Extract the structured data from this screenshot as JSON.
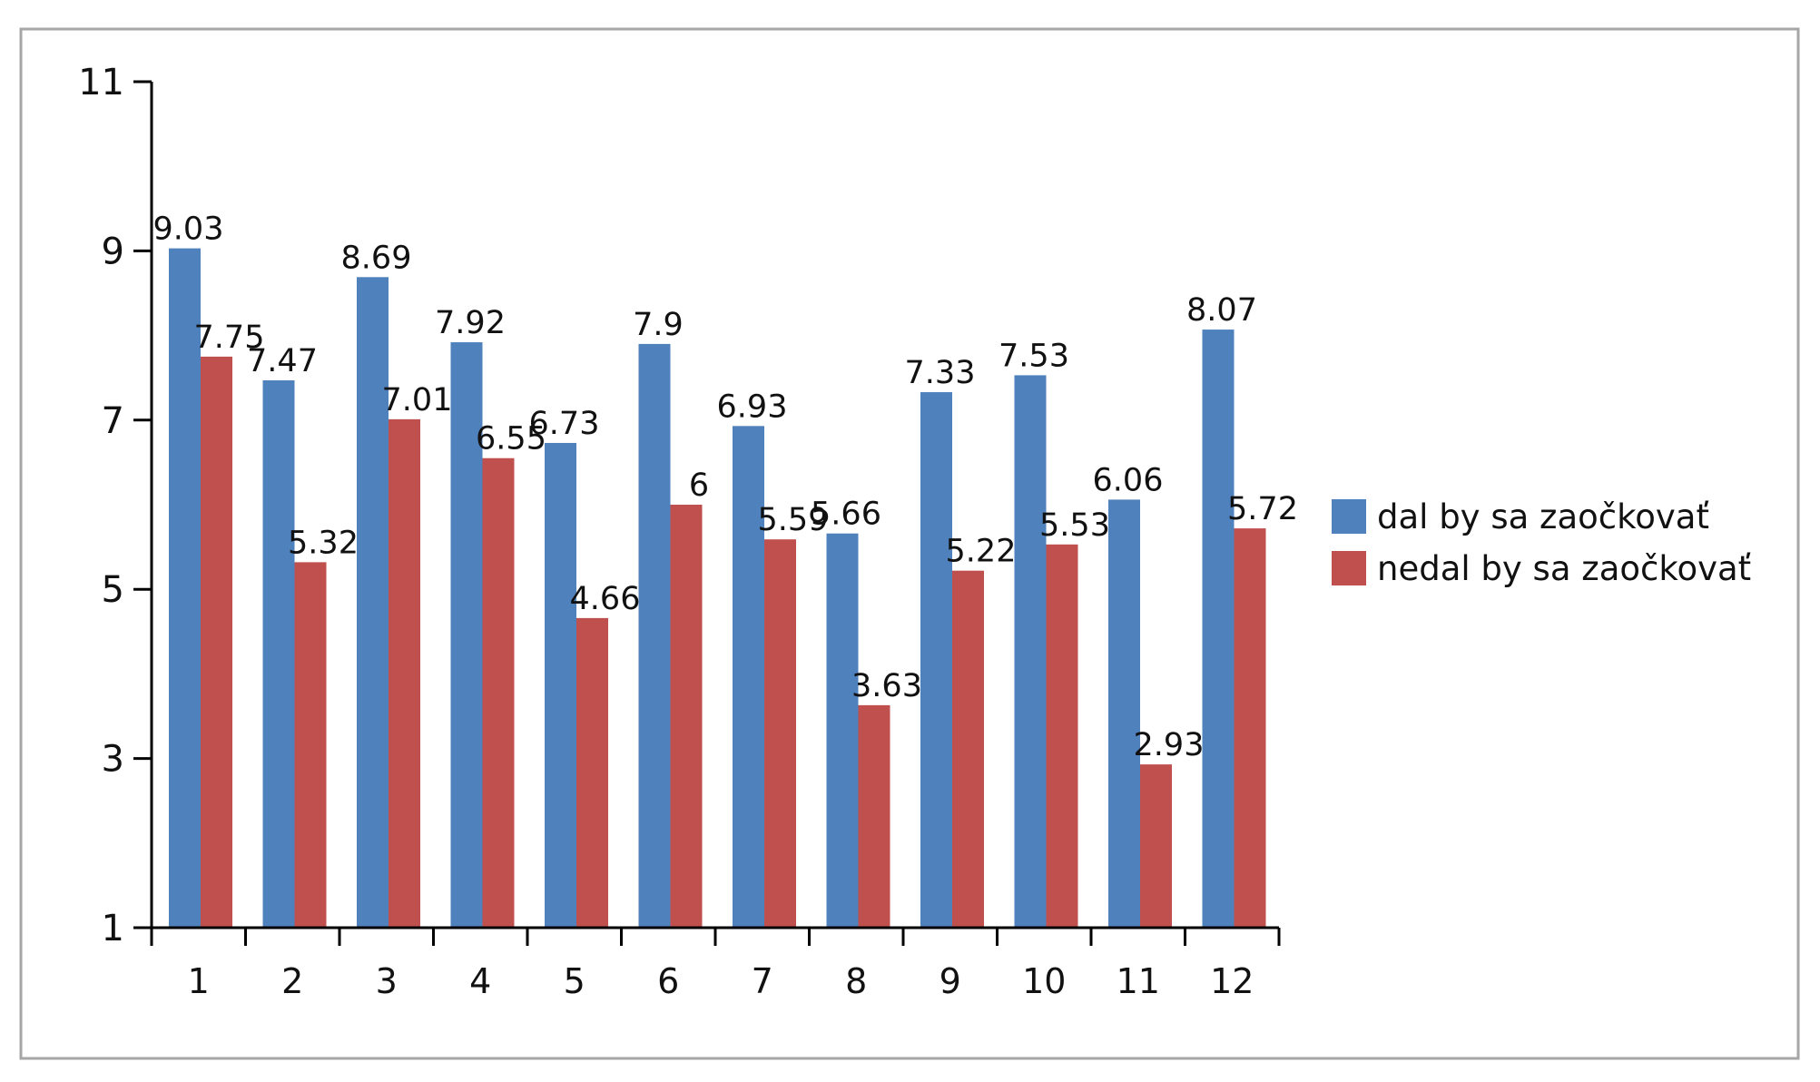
{
  "chart_data": {
    "type": "bar",
    "title": "",
    "xlabel": "",
    "ylabel": "",
    "categories": [
      "1",
      "2",
      "3",
      "4",
      "5",
      "6",
      "7",
      "8",
      "9",
      "10",
      "11",
      "12"
    ],
    "series": [
      {
        "name": "dal by sa zaočkovať",
        "color": "#4F81BD",
        "values": [
          9.03,
          7.47,
          8.69,
          7.92,
          6.73,
          7.9,
          6.93,
          5.66,
          7.33,
          7.53,
          6.06,
          8.07
        ]
      },
      {
        "name": "nedal by sa zaočkovať",
        "color": "#C0504D",
        "values": [
          7.75,
          5.32,
          7.01,
          6.55,
          4.66,
          6,
          5.59,
          3.63,
          5.22,
          5.53,
          2.93,
          5.72
        ]
      }
    ],
    "ylim": [
      1,
      11
    ],
    "yticks": [
      1,
      3,
      5,
      7,
      9,
      11
    ],
    "grid": false,
    "legend": "right"
  }
}
